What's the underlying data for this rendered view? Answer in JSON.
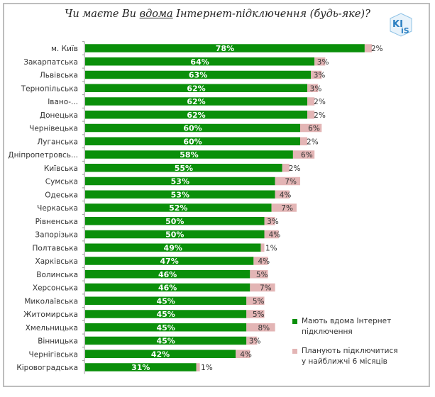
{
  "chart_data": {
    "type": "bar",
    "orientation": "horizontal",
    "stacked": true,
    "title_parts": [
      "Чи маєте Ви ",
      "вдома",
      " Інтернет-підключення  (будь-яке)?"
    ],
    "categories": [
      "м. Київ",
      "Закарпатська",
      "Львівська",
      "Тернопільська",
      "Івано-...",
      "Донецька",
      "Чернівецька",
      "Луганська",
      "Дніпропетровсь...",
      "Київська",
      "Сумська",
      "Одеська",
      "Черкаська",
      "Рівненська",
      "Запорізька",
      "Полтавська",
      "Харківська",
      "Волинська",
      "Херсонська",
      "Миколаївська",
      "Житомирська",
      "Хмельницька",
      "Вінницька",
      "Чернігівська",
      "Кіровоградська"
    ],
    "series": [
      {
        "name": "Мають вдома Інтернет підключення",
        "color": "#0a8f0a",
        "values": [
          78,
          64,
          63,
          62,
          62,
          62,
          60,
          60,
          58,
          55,
          53,
          53,
          52,
          50,
          50,
          49,
          47,
          46,
          46,
          45,
          45,
          45,
          45,
          42,
          31
        ]
      },
      {
        "name": "Планують підключитися у найближчі 6 місяців",
        "color": "#e3b5b5",
        "values": [
          2,
          3,
          3,
          3,
          2,
          2,
          6,
          2,
          6,
          2,
          7,
          4,
          7,
          3,
          4,
          1,
          4,
          5,
          7,
          5,
          5,
          8,
          3,
          4,
          1
        ]
      }
    ],
    "legend": [
      {
        "line1": "Мають вдома Інтернет",
        "line2": "підключення"
      },
      {
        "line1": "Планують підключитися",
        "line2": "у найближчі 6 місяців"
      }
    ],
    "legend_position": "bottom-right",
    "value_suffix": "%",
    "grid": false,
    "logo_text": "KI iS"
  }
}
